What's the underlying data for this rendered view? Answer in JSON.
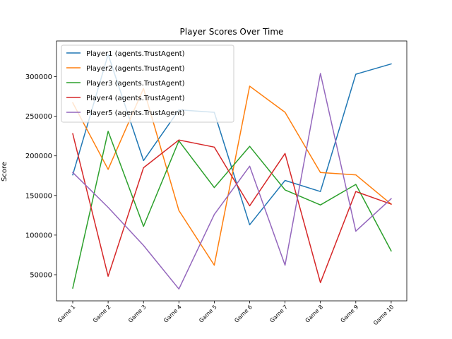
{
  "chart_data": {
    "type": "line",
    "title": "Player Scores Over Time",
    "xlabel": "",
    "ylabel": "Score",
    "categories": [
      "Game 1",
      "Game 2",
      "Game 3",
      "Game 4",
      "Game 5",
      "Game 6",
      "Game 7",
      "Game 8",
      "Game 9",
      "Game 10"
    ],
    "ylim": [
      17000,
      345000
    ],
    "yticks": [
      50000,
      100000,
      150000,
      200000,
      250000,
      300000
    ],
    "ytick_labels": [
      "50000",
      "100000",
      "150000",
      "200000",
      "250000",
      "300000"
    ],
    "grid": false,
    "legend_position": "top-left",
    "series": [
      {
        "name": "Player1 (agents.TrustAgent)",
        "color": "#1f77b4",
        "values": [
          176000,
          328000,
          194000,
          258000,
          255000,
          113000,
          169000,
          155000,
          303000,
          316000
        ]
      },
      {
        "name": "Player2 (agents.TrustAgent)",
        "color": "#ff7f0e",
        "values": [
          267000,
          183000,
          285000,
          131000,
          62000,
          288000,
          255000,
          179000,
          176000,
          139000
        ]
      },
      {
        "name": "Player3 (agents.TrustAgent)",
        "color": "#2ca02c",
        "values": [
          33000,
          231000,
          111000,
          219000,
          160000,
          212000,
          157000,
          138000,
          164000,
          80000
        ]
      },
      {
        "name": "Player4 (agents.TrustAgent)",
        "color": "#d62728",
        "values": [
          228000,
          48000,
          185000,
          220000,
          211000,
          137000,
          203000,
          40000,
          155000,
          139000
        ]
      },
      {
        "name": "Player5 (agents.TrustAgent)",
        "color": "#9467bd",
        "values": [
          179000,
          135000,
          87000,
          32000,
          126000,
          187000,
          62000,
          304000,
          105000,
          146000
        ]
      }
    ]
  }
}
